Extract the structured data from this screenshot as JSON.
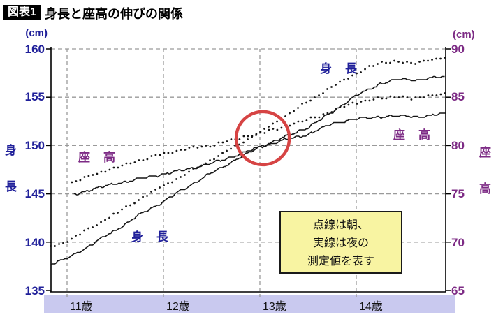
{
  "title": {
    "badge": "図表1",
    "text": "身長と座高の伸びの関係"
  },
  "left_axis": {
    "unit": "(cm)",
    "title_chars": [
      "身",
      "長"
    ],
    "ticks": [
      "160",
      "155",
      "150",
      "145",
      "140",
      "135"
    ]
  },
  "right_axis": {
    "unit": "(cm)",
    "title_chars": [
      "座",
      "高"
    ],
    "ticks": [
      "90",
      "85",
      "80",
      "75",
      "70",
      "65"
    ]
  },
  "x_axis": {
    "labels": [
      "11歳",
      "12歳",
      "13歳",
      "14歳"
    ]
  },
  "curve_labels": {
    "height_top": "身　長",
    "sitting_right": "座　高",
    "sitting_left": "座　高",
    "height_bottom": "身　長"
  },
  "note": {
    "lines": [
      "点線は朝、",
      "実線は夜の",
      "測定値を表す"
    ]
  },
  "colors": {
    "navy": "#20209a",
    "purple": "#7d2b85",
    "curve": "#151515",
    "grid": "#9a9a9a",
    "band": "#c9c9ef",
    "note_bg": "#f8f4a2",
    "circle_red": "#d64444"
  },
  "chart_data": {
    "type": "line",
    "title": "身長と座高の伸びの関係",
    "x_unit": "歳",
    "x_ticks": [
      11,
      12,
      13,
      14
    ],
    "x_range": [
      10.83,
      14.93
    ],
    "left_ylim": [
      135,
      160
    ],
    "right_ylim": [
      65,
      90
    ],
    "grid": true,
    "note": "点線は朝、実線は夜の測定値を表す",
    "series": [
      {
        "name": "身長・朝(点線)",
        "style": "dotted",
        "axis": "left",
        "points": [
          [
            10.83,
            139.6
          ],
          [
            11,
            140.2
          ],
          [
            11.25,
            141.6
          ],
          [
            11.5,
            143.0
          ],
          [
            11.75,
            144.5
          ],
          [
            12,
            145.9
          ],
          [
            12.25,
            147.2
          ],
          [
            12.5,
            148.6
          ],
          [
            12.75,
            150.0
          ],
          [
            13,
            151.4
          ],
          [
            13.25,
            153.0
          ],
          [
            13.5,
            154.6
          ],
          [
            13.75,
            156.1
          ],
          [
            14,
            157.5
          ],
          [
            14.2,
            158.4
          ],
          [
            14.4,
            158.8
          ],
          [
            14.6,
            158.5
          ],
          [
            14.75,
            158.9
          ],
          [
            14.93,
            159.1
          ]
        ]
      },
      {
        "name": "身長・夜(実線)",
        "style": "solid",
        "axis": "left",
        "points": [
          [
            10.83,
            137.8
          ],
          [
            11,
            138.4
          ],
          [
            11.25,
            139.8
          ],
          [
            11.5,
            141.3
          ],
          [
            11.75,
            142.9
          ],
          [
            12,
            144.3
          ],
          [
            12.25,
            145.8
          ],
          [
            12.5,
            147.2
          ],
          [
            12.75,
            148.6
          ],
          [
            13,
            149.9
          ],
          [
            13.25,
            150.9
          ],
          [
            13.5,
            151.9
          ],
          [
            13.75,
            153.5
          ],
          [
            14,
            155.2
          ],
          [
            14.25,
            156.4
          ],
          [
            14.45,
            156.9
          ],
          [
            14.65,
            156.8
          ],
          [
            14.93,
            157.2
          ]
        ]
      },
      {
        "name": "座高・朝(点線)",
        "style": "dotted",
        "axis": "right",
        "points": [
          [
            11.05,
            76.2
          ],
          [
            11.25,
            77.0
          ],
          [
            11.5,
            77.7
          ],
          [
            11.75,
            78.5
          ],
          [
            12,
            79.2
          ],
          [
            12.25,
            79.7
          ],
          [
            12.5,
            80.1
          ],
          [
            12.75,
            80.7
          ],
          [
            13,
            81.3
          ],
          [
            13.25,
            82.0
          ],
          [
            13.5,
            82.7
          ],
          [
            13.75,
            83.6
          ],
          [
            14,
            84.5
          ],
          [
            14.25,
            84.9
          ],
          [
            14.45,
            85.1
          ],
          [
            14.6,
            84.8
          ],
          [
            14.75,
            85.2
          ],
          [
            14.93,
            85.4
          ]
        ]
      },
      {
        "name": "座高・夜(実線)",
        "style": "solid",
        "axis": "right",
        "points": [
          [
            11.07,
            75.0
          ],
          [
            11.25,
            75.5
          ],
          [
            11.5,
            76.1
          ],
          [
            11.75,
            76.6
          ],
          [
            12,
            77.1
          ],
          [
            12.25,
            77.6
          ],
          [
            12.5,
            78.2
          ],
          [
            12.75,
            79.0
          ],
          [
            13,
            79.9
          ],
          [
            13.25,
            80.6
          ],
          [
            13.5,
            81.2
          ],
          [
            13.75,
            82.3
          ],
          [
            14,
            82.8
          ],
          [
            14.25,
            83.0
          ],
          [
            14.5,
            83.1
          ],
          [
            14.7,
            83.0
          ],
          [
            14.93,
            83.4
          ]
        ]
      }
    ],
    "annotation_circle": {
      "center_age": 13.03,
      "center_cm_left": 150.8,
      "radius_px": 38
    }
  }
}
